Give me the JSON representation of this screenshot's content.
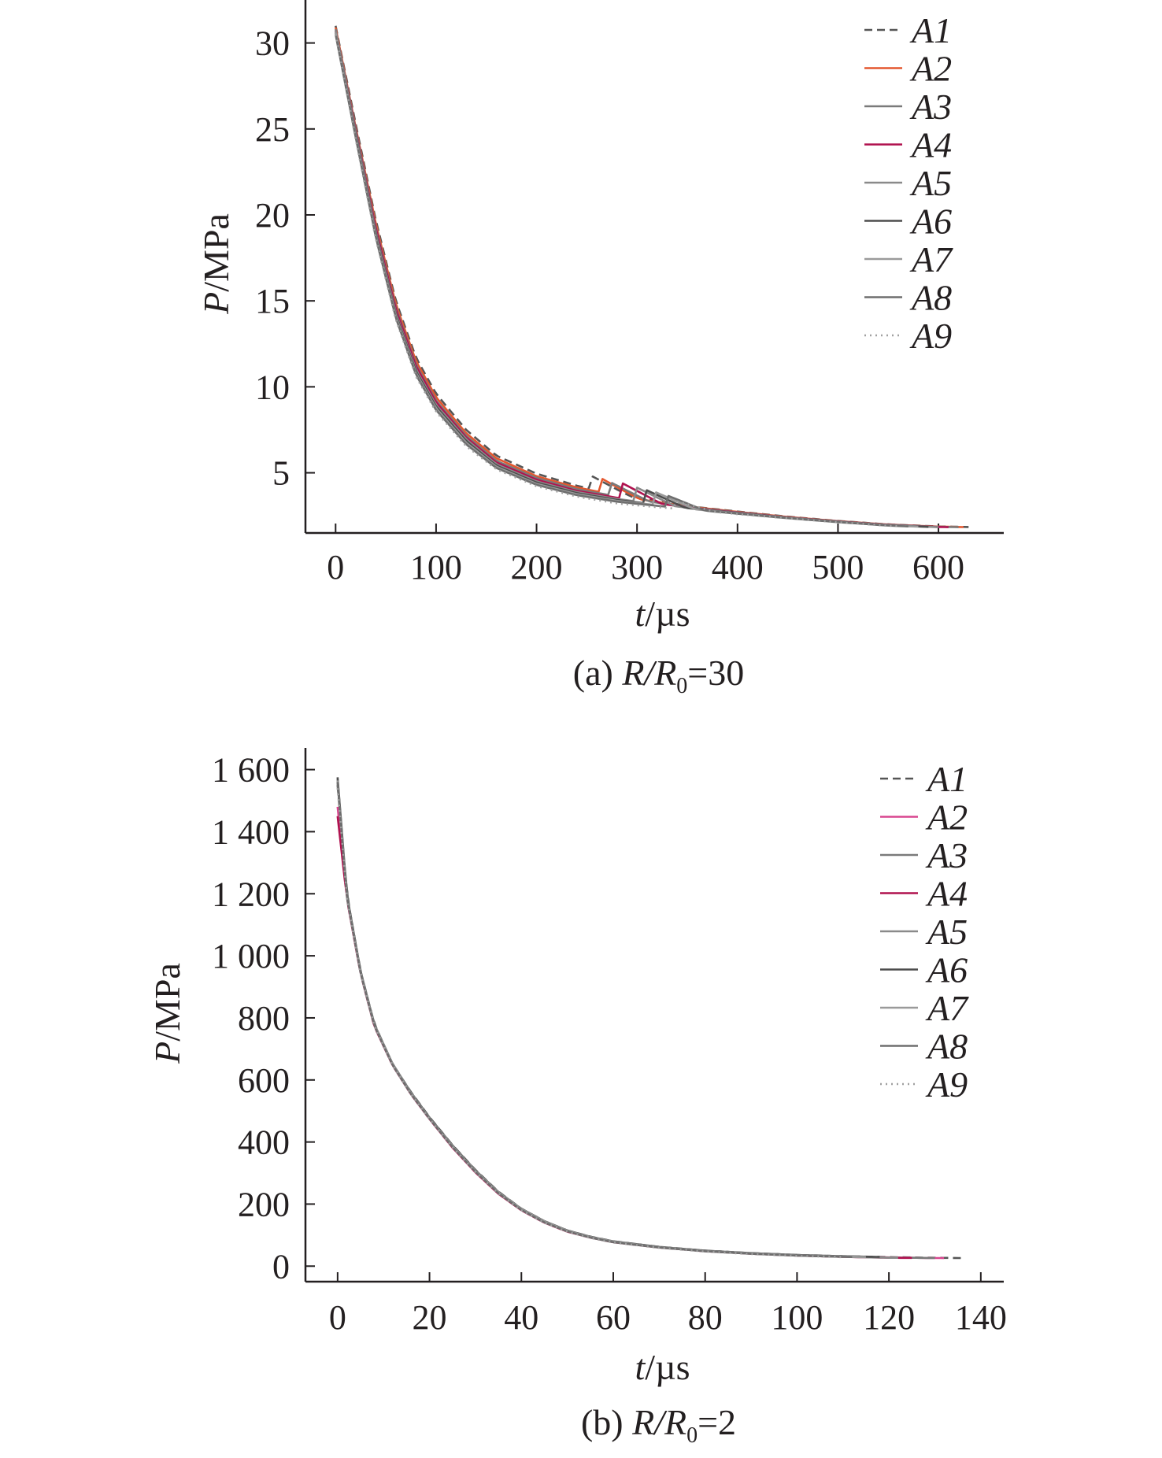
{
  "chart_data": [
    {
      "type": "line",
      "panel": "a",
      "caption_prefix": "(a) ",
      "caption_ratio": "R/R",
      "caption_sub": "0",
      "caption_suffix": "=30",
      "xlabel_var": "t",
      "xlabel_unit": "/µs",
      "ylabel_var": "P",
      "ylabel_unit": "/MPa",
      "xlim": [
        -30,
        665
      ],
      "ylim": [
        1.5,
        32.5
      ],
      "xticks": [
        0,
        100,
        200,
        300,
        400,
        500,
        600
      ],
      "xtick_labels": [
        "0",
        "100",
        "200",
        "300",
        "400",
        "500",
        "600"
      ],
      "yticks": [
        5,
        10,
        15,
        20,
        25,
        30
      ],
      "ytick_labels": [
        "5",
        "10",
        "15",
        "20",
        "25",
        "30"
      ],
      "legend_position": "top-right",
      "x": [
        0,
        20,
        40,
        60,
        80,
        100,
        130,
        160,
        200,
        240,
        280,
        320,
        360,
        400,
        450,
        500,
        550,
        600,
        630
      ],
      "series": [
        {
          "name": "A1",
          "color": "#555555",
          "dash": "10,6",
          "x_end": 630,
          "bump": [
            255,
            0.75
          ],
          "values": [
            31.0,
            25.3,
            19.7,
            15.0,
            11.7,
            9.6,
            7.5,
            6.0,
            4.95,
            4.25,
            3.75,
            3.35,
            3.0,
            2.75,
            2.45,
            2.2,
            2.0,
            1.88,
            1.85
          ]
        },
        {
          "name": "A2",
          "color": "#e4572e",
          "dash": "",
          "x_end": 625,
          "bump": [
            263,
            0.85
          ],
          "values": [
            30.9,
            25.1,
            19.5,
            14.8,
            11.5,
            9.4,
            7.3,
            5.85,
            4.8,
            4.15,
            3.68,
            3.3,
            2.98,
            2.73,
            2.43,
            2.19,
            1.99,
            1.87,
            1.84
          ]
        },
        {
          "name": "A3",
          "color": "#7a7a7a",
          "dash": "",
          "x_end": 620,
          "bump": [
            272,
            0.8
          ],
          "values": [
            30.8,
            25.0,
            19.3,
            14.6,
            11.3,
            9.2,
            7.15,
            5.7,
            4.7,
            4.05,
            3.62,
            3.26,
            2.95,
            2.71,
            2.41,
            2.18,
            1.98,
            1.86,
            1.83
          ]
        },
        {
          "name": "A4",
          "color": "#b0124f",
          "dash": "",
          "x_end": 610,
          "bump": [
            285,
            0.9
          ],
          "values": [
            30.7,
            24.9,
            19.2,
            14.5,
            11.2,
            9.1,
            7.05,
            5.6,
            4.6,
            3.95,
            3.55,
            3.22,
            2.92,
            2.69,
            2.4,
            2.17,
            1.97,
            1.85,
            1.82
          ]
        },
        {
          "name": "A5",
          "color": "#8a8a8a",
          "dash": "",
          "x_end": 600,
          "bump": [
            298,
            0.85
          ],
          "values": [
            30.7,
            24.8,
            19.0,
            14.3,
            11.0,
            8.95,
            6.95,
            5.5,
            4.5,
            3.88,
            3.48,
            3.18,
            2.9,
            2.67,
            2.39,
            2.16,
            1.96,
            1.84,
            1.81
          ]
        },
        {
          "name": "A6",
          "color": "#4d4d4d",
          "dash": "",
          "x_end": 590,
          "bump": [
            308,
            0.8
          ],
          "values": [
            30.6,
            24.7,
            18.9,
            14.2,
            10.9,
            8.85,
            6.85,
            5.42,
            4.43,
            3.82,
            3.42,
            3.15,
            2.88,
            2.66,
            2.38,
            2.15,
            1.95,
            1.83,
            1.8
          ]
        },
        {
          "name": "A7",
          "color": "#9a9a9a",
          "dash": "",
          "x_end": 580,
          "bump": [
            318,
            0.75
          ],
          "values": [
            30.6,
            24.6,
            18.8,
            14.1,
            10.8,
            8.75,
            6.75,
            5.35,
            4.36,
            3.76,
            3.37,
            3.12,
            2.86,
            2.64,
            2.37,
            2.14,
            1.94,
            1.82,
            1.79
          ]
        },
        {
          "name": "A8",
          "color": "#6e6e6e",
          "dash": "",
          "x_end": 570,
          "bump": [
            328,
            0.7
          ],
          "values": [
            30.5,
            24.5,
            18.7,
            14.0,
            10.7,
            8.65,
            6.65,
            5.28,
            4.3,
            3.7,
            3.32,
            3.08,
            2.84,
            2.62,
            2.36,
            2.13,
            1.93,
            1.81,
            1.78
          ]
        },
        {
          "name": "A9",
          "color": "#a0a0a0",
          "dash": "2,5",
          "x_end": 560,
          "bump": [
            338,
            0.45
          ],
          "values": [
            30.5,
            24.4,
            18.6,
            13.9,
            10.6,
            8.55,
            6.55,
            5.2,
            4.22,
            3.62,
            3.22,
            3.0,
            2.82,
            2.6,
            2.35,
            2.12,
            1.92,
            1.8,
            1.77
          ]
        }
      ]
    },
    {
      "type": "line",
      "panel": "b",
      "caption_prefix": "(b) ",
      "caption_ratio": "R/R",
      "caption_sub": "0",
      "caption_suffix": "=2",
      "xlabel_var": "t",
      "xlabel_unit": "/µs",
      "ylabel_var": "P",
      "ylabel_unit": "/MPa",
      "xlim": [
        -7,
        145
      ],
      "ylim": [
        -50,
        1670
      ],
      "xticks": [
        0,
        20,
        40,
        60,
        80,
        100,
        120,
        140
      ],
      "xtick_labels": [
        "0",
        "20",
        "40",
        "60",
        "80",
        "100",
        "120",
        "140"
      ],
      "yticks": [
        0,
        200,
        400,
        600,
        800,
        1000,
        1200,
        1400,
        1600
      ],
      "ytick_labels": [
        "0",
        "200",
        "400",
        "600",
        "800",
        "1 000",
        "1 200",
        "1 400",
        "1 600"
      ],
      "legend_position": "top-right",
      "x": [
        0,
        2,
        5,
        8,
        12,
        16,
        20,
        25,
        30,
        35,
        40,
        45,
        50,
        55,
        60,
        70,
        80,
        90,
        100,
        110,
        120,
        130,
        136
      ],
      "series": [
        {
          "name": "A1",
          "color": "#555555",
          "dash": "10,6",
          "x_end": 136,
          "values": [
            1550,
            1200,
            950,
            780,
            650,
            560,
            480,
            390,
            310,
            240,
            185,
            145,
            115,
            95,
            80,
            62,
            50,
            42,
            36,
            32,
            29,
            27,
            26
          ]
        },
        {
          "name": "A2",
          "color": "#d9468f",
          "dash": "",
          "x_end": 132,
          "values": [
            1480,
            1190,
            945,
            775,
            648,
            555,
            476,
            385,
            305,
            236,
            182,
            142,
            113,
            93,
            78,
            61,
            49,
            41,
            35,
            31,
            28,
            26,
            26
          ]
        },
        {
          "name": "A3",
          "color": "#7a7a7a",
          "dash": "",
          "x_end": 130,
          "values": [
            1560,
            1195,
            948,
            778,
            650,
            558,
            478,
            388,
            308,
            238,
            184,
            144,
            114,
            94,
            79,
            61,
            49,
            41,
            35,
            31,
            28,
            26,
            26
          ]
        },
        {
          "name": "A4",
          "color": "#b0124f",
          "dash": "",
          "x_end": 125,
          "values": [
            1450,
            1185,
            942,
            772,
            646,
            553,
            474,
            382,
            302,
            233,
            180,
            140,
            111,
            92,
            77,
            60,
            48,
            40,
            34,
            30,
            27,
            26,
            26
          ]
        },
        {
          "name": "A5",
          "color": "#8a8a8a",
          "dash": "",
          "x_end": 122,
          "values": [
            1570,
            1192,
            946,
            776,
            649,
            556,
            477,
            386,
            306,
            237,
            183,
            143,
            113,
            93,
            78,
            60,
            48,
            40,
            34,
            30,
            27,
            26,
            26
          ]
        },
        {
          "name": "A6",
          "color": "#4d4d4d",
          "dash": "",
          "x_end": 118,
          "values": [
            1575,
            1198,
            950,
            779,
            651,
            559,
            479,
            389,
            309,
            239,
            185,
            145,
            115,
            95,
            80,
            62,
            50,
            42,
            36,
            32,
            29,
            27,
            26
          ]
        },
        {
          "name": "A7",
          "color": "#9a9a9a",
          "dash": "",
          "x_end": 115,
          "values": [
            1565,
            1193,
            947,
            777,
            650,
            557,
            477,
            387,
            307,
            238,
            184,
            144,
            114,
            94,
            79,
            61,
            49,
            41,
            35,
            31,
            28,
            26,
            26
          ]
        },
        {
          "name": "A8",
          "color": "#6e6e6e",
          "dash": "",
          "x_end": 112,
          "values": [
            1560,
            1190,
            944,
            774,
            647,
            554,
            475,
            384,
            304,
            235,
            181,
            141,
            112,
            92,
            77,
            60,
            48,
            40,
            34,
            30,
            27,
            26,
            26
          ]
        },
        {
          "name": "A9",
          "color": "#a0a0a0",
          "dash": "2,5",
          "x_end": 110,
          "values": [
            1540,
            1188,
            943,
            773,
            646,
            553,
            474,
            383,
            303,
            234,
            180,
            140,
            111,
            91,
            76,
            59,
            47,
            39,
            33,
            29,
            26,
            25,
            25
          ]
        }
      ]
    }
  ]
}
